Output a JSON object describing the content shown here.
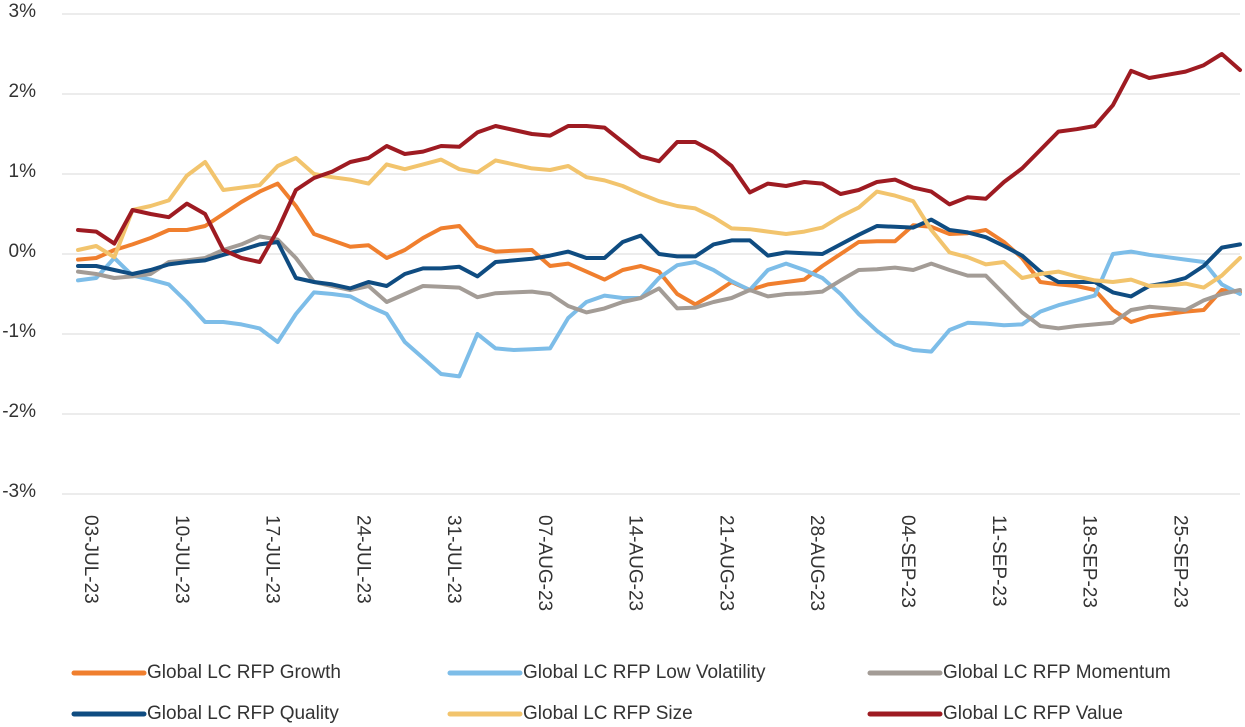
{
  "chart_data": {
    "type": "line",
    "categories": [
      "03-JUL-23",
      null,
      null,
      null,
      null,
      "10-JUL-23",
      null,
      null,
      null,
      null,
      "17-JUL-23",
      null,
      null,
      null,
      null,
      "24-JUL-23",
      null,
      null,
      null,
      null,
      "31-JUL-23",
      null,
      null,
      null,
      null,
      "07-AUG-23",
      null,
      null,
      null,
      null,
      "14-AUG-23",
      null,
      null,
      null,
      null,
      "21-AUG-23",
      null,
      null,
      null,
      null,
      "28-AUG-23",
      null,
      null,
      null,
      null,
      "04-SEP-23",
      null,
      null,
      null,
      null,
      "11-SEP-23",
      null,
      null,
      null,
      null,
      "18-SEP-23",
      null,
      null,
      null,
      null,
      "25-SEP-23",
      null,
      null,
      null,
      null
    ],
    "ylim": [
      -3,
      3
    ],
    "yticks": [
      {
        "value": -3,
        "label": "-3%"
      },
      {
        "value": -2,
        "label": "-2%"
      },
      {
        "value": -1,
        "label": "-1%"
      },
      {
        "value": 0,
        "label": "0%"
      },
      {
        "value": 1,
        "label": "1%"
      },
      {
        "value": 2,
        "label": "2%"
      },
      {
        "value": 3,
        "label": "3%"
      }
    ],
    "grid": true,
    "legend": "bottom",
    "series": [
      {
        "name": "Global LC RFP Growth",
        "color": "#f07f2e",
        "values": [
          -0.07,
          -0.05,
          0.05,
          0.12,
          0.2,
          0.3,
          0.3,
          0.35,
          0.5,
          0.65,
          0.78,
          0.88,
          0.6,
          0.25,
          0.17,
          0.09,
          0.11,
          -0.05,
          0.05,
          0.2,
          0.32,
          0.35,
          0.1,
          0.03,
          0.04,
          0.05,
          -0.15,
          -0.12,
          -0.22,
          -0.32,
          -0.2,
          -0.15,
          -0.22,
          -0.5,
          -0.63,
          -0.5,
          -0.35,
          -0.45,
          -0.38,
          -0.35,
          -0.32,
          -0.15,
          0.0,
          0.15,
          0.16,
          0.16,
          0.36,
          0.34,
          0.25,
          0.26,
          0.3,
          0.15,
          -0.05,
          -0.35,
          -0.38,
          -0.4,
          -0.45,
          -0.7,
          -0.85,
          -0.78,
          -0.75,
          -0.72,
          -0.7,
          -0.45,
          -0.48
        ]
      },
      {
        "name": "Global LC RFP Low Volatility",
        "color": "#7dbde8",
        "values": [
          -0.33,
          -0.3,
          -0.05,
          -0.27,
          -0.32,
          -0.38,
          -0.6,
          -0.85,
          -0.85,
          -0.88,
          -0.93,
          -1.1,
          -0.75,
          -0.48,
          -0.5,
          -0.53,
          -0.65,
          -0.75,
          -1.1,
          -1.3,
          -1.5,
          -1.53,
          -1.0,
          -1.18,
          -1.2,
          -1.19,
          -1.18,
          -0.8,
          -0.6,
          -0.52,
          -0.55,
          -0.55,
          -0.3,
          -0.14,
          -0.1,
          -0.2,
          -0.34,
          -0.45,
          -0.2,
          -0.12,
          -0.2,
          -0.3,
          -0.5,
          -0.75,
          -0.96,
          -1.13,
          -1.2,
          -1.22,
          -0.95,
          -0.86,
          -0.87,
          -0.89,
          -0.88,
          -0.72,
          -0.64,
          -0.58,
          -0.52,
          0.0,
          0.03,
          -0.01,
          -0.04,
          -0.07,
          -0.1,
          -0.38,
          -0.5
        ]
      },
      {
        "name": "Global LC RFP Momentum",
        "color": "#a39c96",
        "values": [
          -0.22,
          -0.25,
          -0.3,
          -0.28,
          -0.25,
          -0.1,
          -0.08,
          -0.05,
          0.05,
          0.12,
          0.22,
          0.18,
          -0.05,
          -0.35,
          -0.4,
          -0.45,
          -0.4,
          -0.6,
          -0.5,
          -0.4,
          -0.41,
          -0.42,
          -0.54,
          -0.49,
          -0.48,
          -0.47,
          -0.5,
          -0.65,
          -0.73,
          -0.68,
          -0.6,
          -0.55,
          -0.43,
          -0.68,
          -0.67,
          -0.6,
          -0.55,
          -0.45,
          -0.53,
          -0.5,
          -0.49,
          -0.47,
          -0.33,
          -0.2,
          -0.19,
          -0.17,
          -0.2,
          -0.12,
          -0.2,
          -0.27,
          -0.27,
          -0.5,
          -0.73,
          -0.9,
          -0.93,
          -0.9,
          -0.88,
          -0.86,
          -0.7,
          -0.66,
          -0.68,
          -0.7,
          -0.58,
          -0.5,
          -0.45
        ]
      },
      {
        "name": "Global LC RFP Quality",
        "color": "#0f4c81",
        "values": [
          -0.15,
          -0.15,
          -0.2,
          -0.25,
          -0.2,
          -0.13,
          -0.1,
          -0.08,
          -0.01,
          0.05,
          0.12,
          0.15,
          -0.3,
          -0.35,
          -0.38,
          -0.43,
          -0.35,
          -0.4,
          -0.25,
          -0.18,
          -0.18,
          -0.16,
          -0.28,
          -0.1,
          -0.08,
          -0.06,
          -0.02,
          0.03,
          -0.05,
          -0.05,
          0.15,
          0.23,
          0.0,
          -0.03,
          -0.03,
          0.12,
          0.17,
          0.17,
          -0.02,
          0.02,
          0.01,
          0.0,
          0.12,
          0.24,
          0.35,
          0.34,
          0.33,
          0.43,
          0.3,
          0.27,
          0.21,
          0.1,
          -0.02,
          -0.22,
          -0.35,
          -0.35,
          -0.35,
          -0.48,
          -0.53,
          -0.4,
          -0.36,
          -0.3,
          -0.15,
          0.08,
          0.12
        ]
      },
      {
        "name": "Global LC RFP Size",
        "color": "#f2c46d",
        "values": [
          0.05,
          0.1,
          -0.04,
          0.55,
          0.6,
          0.67,
          0.98,
          1.15,
          0.8,
          0.83,
          0.86,
          1.1,
          1.2,
          1.0,
          0.96,
          0.93,
          0.88,
          1.12,
          1.06,
          1.12,
          1.18,
          1.06,
          1.02,
          1.17,
          1.12,
          1.07,
          1.05,
          1.1,
          0.96,
          0.92,
          0.85,
          0.75,
          0.66,
          0.6,
          0.57,
          0.46,
          0.32,
          0.31,
          0.28,
          0.25,
          0.28,
          0.33,
          0.47,
          0.58,
          0.78,
          0.73,
          0.66,
          0.3,
          0.02,
          -0.04,
          -0.13,
          -0.1,
          -0.3,
          -0.25,
          -0.22,
          -0.28,
          -0.33,
          -0.35,
          -0.32,
          -0.4,
          -0.39,
          -0.37,
          -0.42,
          -0.27,
          -0.05
        ]
      },
      {
        "name": "Global LC RFP Value",
        "color": "#9e1b22",
        "values": [
          0.3,
          0.28,
          0.13,
          0.55,
          0.5,
          0.46,
          0.63,
          0.5,
          0.05,
          -0.05,
          -0.1,
          0.3,
          0.8,
          0.95,
          1.03,
          1.15,
          1.2,
          1.35,
          1.25,
          1.28,
          1.35,
          1.34,
          1.52,
          1.6,
          1.55,
          1.5,
          1.48,
          1.6,
          1.6,
          1.58,
          1.4,
          1.22,
          1.16,
          1.4,
          1.4,
          1.28,
          1.1,
          0.77,
          0.88,
          0.85,
          0.9,
          0.88,
          0.75,
          0.8,
          0.9,
          0.93,
          0.83,
          0.78,
          0.62,
          0.71,
          0.69,
          0.9,
          1.07,
          1.3,
          1.53,
          1.56,
          1.6,
          1.86,
          2.29,
          2.2,
          2.24,
          2.28,
          2.36,
          2.5,
          2.3
        ]
      }
    ]
  }
}
